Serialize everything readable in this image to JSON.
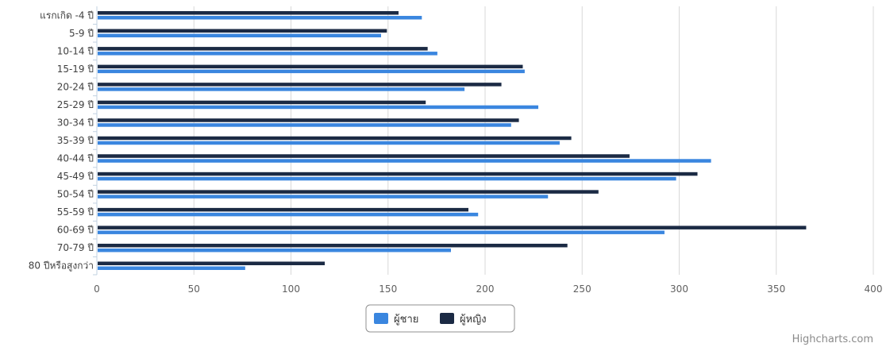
{
  "chart_data": {
    "type": "bar",
    "orientation": "horizontal",
    "categories": [
      "แรกเกิด -4 ปี",
      "5-9 ปี",
      "10-14 ปี",
      "15-19 ปี",
      "20-24 ปี",
      "25-29 ปี",
      "30-34 ปี",
      "35-39 ปี",
      "40-44 ปี",
      "45-49 ปี",
      "50-54 ปี",
      "55-59 ปี",
      "60-69 ปี",
      "70-79 ปี",
      "80 ปีหรือสูงกว่า"
    ],
    "series": [
      {
        "name": "ผู้หญิง",
        "color": "#1b2a44",
        "values": [
          155,
          149,
          170,
          219,
          208,
          169,
          217,
          244,
          274,
          309,
          258,
          191,
          365,
          242,
          117
        ]
      },
      {
        "name": "ผู้ชาย",
        "color": "#3a86df",
        "values": [
          167,
          146,
          175,
          220,
          189,
          227,
          213,
          238,
          316,
          298,
          232,
          196,
          292,
          182,
          76
        ]
      }
    ],
    "xlim": [
      0,
      400
    ],
    "xticks": [
      0,
      50,
      100,
      150,
      200,
      250,
      300,
      350,
      400
    ],
    "grid": true,
    "legend_position": "bottom-center",
    "legend_order": [
      "ผู้ชาย",
      "ผู้หญิง"
    ]
  },
  "credits": {
    "text": "Highcharts.com"
  }
}
